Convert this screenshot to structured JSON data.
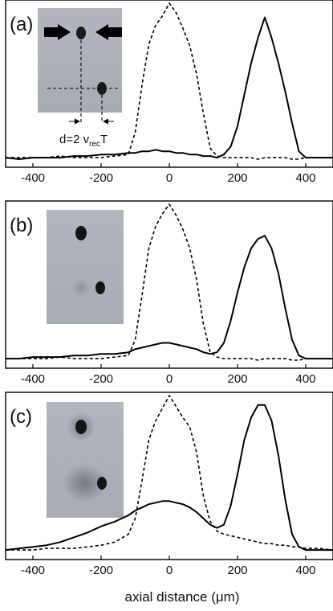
{
  "chart_data": [
    {
      "type": "line",
      "panel_label": "(a)",
      "xlim": [
        -480,
        480
      ],
      "xticks": [
        -400,
        -200,
        0,
        200,
        400
      ],
      "x": [
        -480,
        -440,
        -400,
        -360,
        -320,
        -280,
        -240,
        -200,
        -160,
        -120,
        -100,
        -80,
        -60,
        -40,
        -20,
        0,
        20,
        40,
        60,
        80,
        100,
        120,
        140,
        160,
        180,
        200,
        220,
        240,
        260,
        280,
        300,
        320,
        340,
        360,
        380,
        400,
        440,
        480
      ],
      "series": [
        {
          "style": "dashed",
          "values": [
            0.02,
            0.02,
            0.02,
            0.02,
            0.03,
            0.02,
            0.02,
            0.02,
            0.03,
            0.04,
            0.18,
            0.48,
            0.74,
            0.86,
            0.92,
            1.0,
            0.94,
            0.84,
            0.73,
            0.55,
            0.3,
            0.08,
            0.03,
            0.02,
            0.02,
            0.02,
            0.02,
            0.02,
            0.01,
            0.02,
            0.02,
            0.02,
            0.02,
            0.01,
            0.01,
            0.02,
            0.02,
            0.02
          ]
        },
        {
          "style": "solid",
          "values": [
            0.02,
            0.01,
            0.02,
            0.02,
            0.02,
            0.03,
            0.03,
            0.04,
            0.04,
            0.05,
            0.05,
            0.06,
            0.06,
            0.07,
            0.06,
            0.06,
            0.05,
            0.05,
            0.04,
            0.04,
            0.03,
            0.03,
            0.02,
            0.04,
            0.09,
            0.22,
            0.42,
            0.62,
            0.78,
            0.91,
            0.78,
            0.62,
            0.44,
            0.24,
            0.06,
            0.02,
            0.02,
            0.02
          ]
        }
      ],
      "inset": {
        "annotation_main": "d=2 v",
        "annotation_sub": "rec",
        "annotation_end": "T"
      }
    },
    {
      "type": "line",
      "panel_label": "(b)",
      "xlim": [
        -480,
        480
      ],
      "xticks": [
        -400,
        -200,
        0,
        200,
        400
      ],
      "x": [
        -480,
        -440,
        -400,
        -360,
        -320,
        -280,
        -240,
        -200,
        -160,
        -120,
        -100,
        -80,
        -60,
        -40,
        -20,
        0,
        20,
        40,
        60,
        80,
        100,
        120,
        140,
        160,
        180,
        200,
        220,
        240,
        260,
        280,
        300,
        320,
        340,
        360,
        380,
        400,
        440,
        480
      ],
      "series": [
        {
          "style": "dashed",
          "values": [
            0.02,
            0.02,
            0.02,
            0.02,
            0.03,
            0.02,
            0.02,
            0.02,
            0.03,
            0.04,
            0.14,
            0.42,
            0.72,
            0.86,
            0.94,
            1.0,
            0.93,
            0.84,
            0.72,
            0.52,
            0.24,
            0.06,
            0.03,
            0.02,
            0.02,
            0.02,
            0.02,
            0.02,
            0.01,
            0.02,
            0.02,
            0.02,
            0.02,
            0.01,
            0.01,
            0.02,
            0.02,
            0.02
          ]
        },
        {
          "style": "solid",
          "values": [
            0.02,
            0.02,
            0.03,
            0.03,
            0.03,
            0.04,
            0.04,
            0.05,
            0.05,
            0.06,
            0.08,
            0.09,
            0.1,
            0.11,
            0.12,
            0.12,
            0.11,
            0.1,
            0.09,
            0.08,
            0.06,
            0.05,
            0.06,
            0.12,
            0.26,
            0.44,
            0.6,
            0.72,
            0.78,
            0.8,
            0.72,
            0.56,
            0.34,
            0.14,
            0.04,
            0.02,
            0.02,
            0.02
          ]
        }
      ]
    },
    {
      "type": "line",
      "panel_label": "(c)",
      "xlim": [
        -480,
        480
      ],
      "xticks": [
        -400,
        -200,
        0,
        200,
        400
      ],
      "xlabel": "axial distance (μm)",
      "x": [
        -480,
        -440,
        -400,
        -360,
        -320,
        -280,
        -240,
        -200,
        -160,
        -120,
        -100,
        -80,
        -60,
        -40,
        -20,
        0,
        20,
        40,
        60,
        80,
        100,
        120,
        140,
        160,
        180,
        200,
        220,
        240,
        260,
        280,
        300,
        320,
        340,
        360,
        380,
        400,
        440,
        480
      ],
      "series": [
        {
          "style": "dashed",
          "values": [
            0.02,
            0.02,
            0.02,
            0.03,
            0.03,
            0.03,
            0.04,
            0.05,
            0.07,
            0.12,
            0.22,
            0.46,
            0.72,
            0.84,
            0.92,
            1.0,
            0.93,
            0.86,
            0.8,
            0.64,
            0.36,
            0.2,
            0.14,
            0.12,
            0.11,
            0.1,
            0.09,
            0.08,
            0.07,
            0.06,
            0.06,
            0.05,
            0.05,
            0.04,
            0.04,
            0.03,
            0.03,
            0.02
          ]
        },
        {
          "style": "solid",
          "values": [
            0.02,
            0.03,
            0.04,
            0.05,
            0.07,
            0.1,
            0.13,
            0.17,
            0.2,
            0.24,
            0.27,
            0.29,
            0.31,
            0.32,
            0.33,
            0.33,
            0.32,
            0.31,
            0.29,
            0.26,
            0.22,
            0.18,
            0.16,
            0.18,
            0.3,
            0.5,
            0.72,
            0.86,
            0.94,
            0.94,
            0.84,
            0.62,
            0.34,
            0.12,
            0.04,
            0.02,
            0.02,
            0.02
          ]
        }
      ]
    }
  ]
}
